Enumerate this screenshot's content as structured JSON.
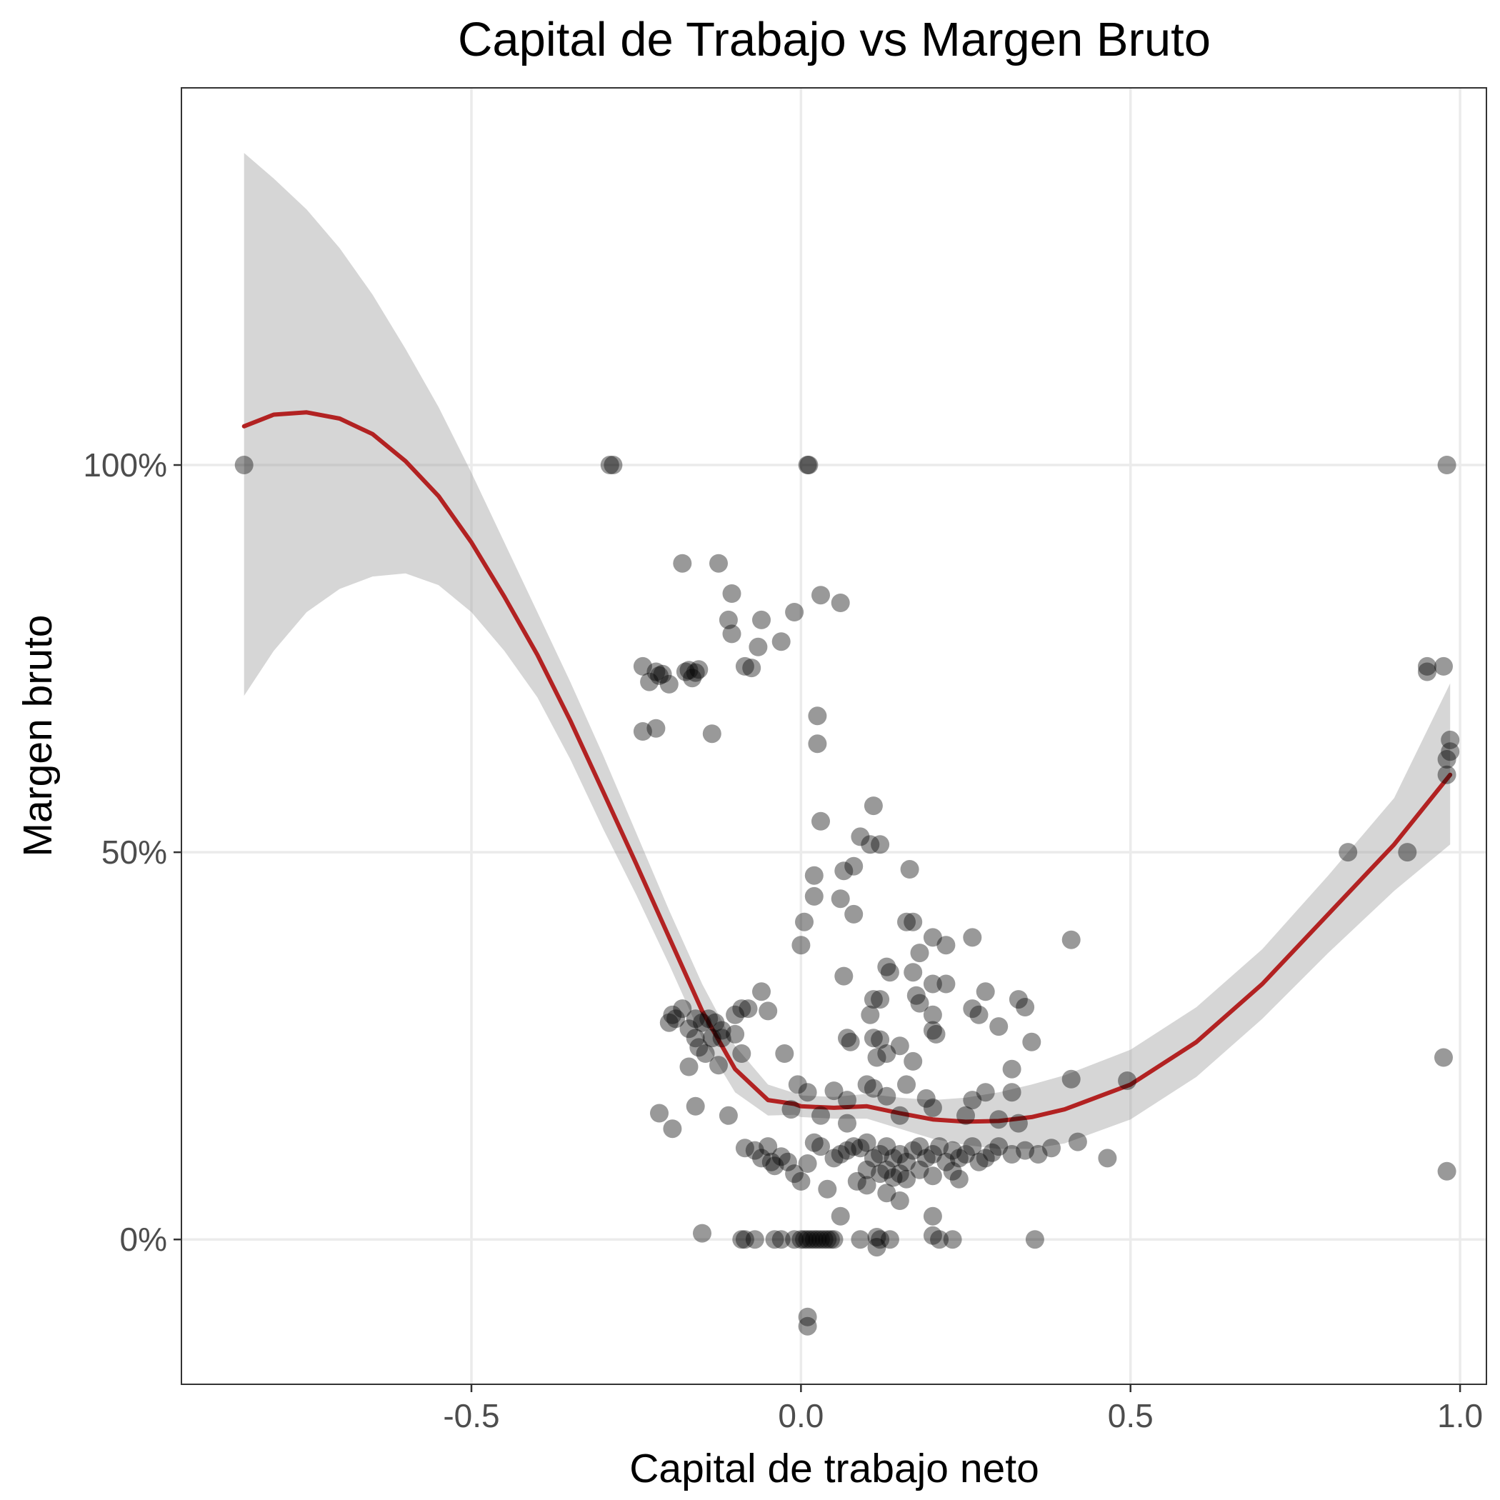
{
  "chart_data": {
    "type": "scatter",
    "title": "Capital de Trabajo vs Margen Bruto",
    "xlabel": "Capital de trabajo neto",
    "ylabel": "Margen bruto",
    "xlim": [
      -0.94,
      1.04
    ],
    "ylim": [
      -0.187,
      1.487
    ],
    "x_ticks": [
      -0.5,
      0.0,
      0.5,
      1.0
    ],
    "x_tick_labels": [
      "-0.5",
      "0.0",
      "0.5",
      "1.0"
    ],
    "y_ticks": [
      0,
      0.5,
      1.0
    ],
    "y_tick_labels": [
      "0%",
      "50%",
      "100%"
    ],
    "grid": true,
    "legend": "none",
    "colors": {
      "points": "#000000",
      "smooth_line": "#b22222",
      "ci_band": "#999999"
    },
    "series": [
      {
        "kind": "points",
        "points": [
          [
            -0.845,
            1.0
          ],
          [
            -0.29,
            1.0
          ],
          [
            -0.285,
            1.0
          ],
          [
            0.01,
            1.0
          ],
          [
            0.012,
            1.0
          ],
          [
            0.98,
            1.0
          ],
          [
            -0.18,
            0.873
          ],
          [
            -0.125,
            0.873
          ],
          [
            -0.105,
            0.834
          ],
          [
            -0.11,
            0.8
          ],
          [
            -0.105,
            0.782
          ],
          [
            -0.06,
            0.8
          ],
          [
            -0.065,
            0.765
          ],
          [
            -0.03,
            0.772
          ],
          [
            -0.01,
            0.81
          ],
          [
            0.03,
            0.832
          ],
          [
            0.06,
            0.822
          ],
          [
            -0.24,
            0.74
          ],
          [
            -0.22,
            0.733
          ],
          [
            -0.215,
            0.728
          ],
          [
            -0.21,
            0.73
          ],
          [
            -0.2,
            0.717
          ],
          [
            -0.23,
            0.72
          ],
          [
            -0.175,
            0.733
          ],
          [
            -0.17,
            0.735
          ],
          [
            -0.16,
            0.732
          ],
          [
            -0.165,
            0.725
          ],
          [
            -0.155,
            0.736
          ],
          [
            -0.085,
            0.74
          ],
          [
            -0.075,
            0.738
          ],
          [
            -0.24,
            0.656
          ],
          [
            -0.22,
            0.66
          ],
          [
            -0.135,
            0.653
          ],
          [
            0.025,
            0.676
          ],
          [
            0.025,
            0.64
          ],
          [
            0.11,
            0.56
          ],
          [
            0.03,
            0.54
          ],
          [
            0.09,
            0.52
          ],
          [
            0.105,
            0.51
          ],
          [
            0.12,
            0.51
          ],
          [
            0.165,
            0.478
          ],
          [
            0.08,
            0.482
          ],
          [
            0.065,
            0.476
          ],
          [
            0.02,
            0.47
          ],
          [
            0.02,
            0.443
          ],
          [
            0.06,
            0.44
          ],
          [
            0.08,
            0.42
          ],
          [
            0.005,
            0.41
          ],
          [
            0.0,
            0.38
          ],
          [
            0.16,
            0.41
          ],
          [
            0.17,
            0.41
          ],
          [
            0.2,
            0.39
          ],
          [
            0.22,
            0.38
          ],
          [
            0.26,
            0.39
          ],
          [
            0.41,
            0.387
          ],
          [
            0.18,
            0.37
          ],
          [
            0.13,
            0.352
          ],
          [
            0.135,
            0.345
          ],
          [
            0.17,
            0.345
          ],
          [
            0.065,
            0.34
          ],
          [
            0.2,
            0.33
          ],
          [
            0.22,
            0.33
          ],
          [
            0.28,
            0.32
          ],
          [
            0.33,
            0.31
          ],
          [
            0.11,
            0.31
          ],
          [
            0.12,
            0.31
          ],
          [
            0.18,
            0.305
          ],
          [
            0.175,
            0.315
          ],
          [
            0.105,
            0.29
          ],
          [
            0.2,
            0.29
          ],
          [
            0.26,
            0.298
          ],
          [
            0.27,
            0.29
          ],
          [
            0.34,
            0.3
          ],
          [
            0.3,
            0.275
          ],
          [
            0.2,
            0.27
          ],
          [
            0.205,
            0.265
          ],
          [
            0.35,
            0.255
          ],
          [
            0.11,
            0.26
          ],
          [
            0.12,
            0.258
          ],
          [
            0.075,
            0.255
          ],
          [
            0.07,
            0.26
          ],
          [
            0.15,
            0.25
          ],
          [
            0.13,
            0.24
          ],
          [
            0.115,
            0.235
          ],
          [
            0.17,
            0.23
          ],
          [
            0.32,
            0.22
          ],
          [
            0.41,
            0.207
          ],
          [
            0.495,
            0.205
          ],
          [
            -0.06,
            0.32
          ],
          [
            -0.08,
            0.298
          ],
          [
            -0.09,
            0.298
          ],
          [
            -0.05,
            0.295
          ],
          [
            -0.19,
            0.285
          ],
          [
            -0.195,
            0.29
          ],
          [
            -0.18,
            0.298
          ],
          [
            -0.2,
            0.28
          ],
          [
            -0.17,
            0.272
          ],
          [
            -0.16,
            0.285
          ],
          [
            -0.15,
            0.28
          ],
          [
            -0.14,
            0.285
          ],
          [
            -0.13,
            0.28
          ],
          [
            -0.12,
            0.27
          ],
          [
            -0.135,
            0.26
          ],
          [
            -0.12,
            0.26
          ],
          [
            -0.1,
            0.29
          ],
          [
            -0.1,
            0.265
          ],
          [
            -0.16,
            0.26
          ],
          [
            -0.155,
            0.248
          ],
          [
            -0.145,
            0.24
          ],
          [
            -0.09,
            0.24
          ],
          [
            -0.025,
            0.24
          ],
          [
            -0.17,
            0.223
          ],
          [
            -0.125,
            0.225
          ],
          [
            -0.005,
            0.2
          ],
          [
            0.01,
            0.19
          ],
          [
            0.05,
            0.192
          ],
          [
            0.1,
            0.2
          ],
          [
            0.11,
            0.195
          ],
          [
            0.13,
            0.185
          ],
          [
            0.16,
            0.2
          ],
          [
            0.07,
            0.18
          ],
          [
            0.19,
            0.182
          ],
          [
            0.2,
            0.17
          ],
          [
            0.26,
            0.18
          ],
          [
            0.28,
            0.19
          ],
          [
            0.32,
            0.19
          ],
          [
            -0.015,
            0.168
          ],
          [
            0.03,
            0.16
          ],
          [
            0.07,
            0.15
          ],
          [
            -0.16,
            0.172
          ],
          [
            -0.215,
            0.163
          ],
          [
            -0.195,
            0.143
          ],
          [
            -0.11,
            0.16
          ],
          [
            0.15,
            0.16
          ],
          [
            0.25,
            0.16
          ],
          [
            0.3,
            0.155
          ],
          [
            0.33,
            0.15
          ],
          [
            -0.085,
            0.118
          ],
          [
            -0.07,
            0.115
          ],
          [
            -0.06,
            0.105
          ],
          [
            -0.05,
            0.12
          ],
          [
            -0.045,
            0.1
          ],
          [
            -0.04,
            0.095
          ],
          [
            -0.03,
            0.107
          ],
          [
            -0.02,
            0.1
          ],
          [
            -0.01,
            0.085
          ],
          [
            0.0,
            0.075
          ],
          [
            0.01,
            0.098
          ],
          [
            0.02,
            0.125
          ],
          [
            0.03,
            0.12
          ],
          [
            0.05,
            0.105
          ],
          [
            0.06,
            0.11
          ],
          [
            0.07,
            0.115
          ],
          [
            0.08,
            0.12
          ],
          [
            0.09,
            0.118
          ],
          [
            0.1,
            0.125
          ],
          [
            0.11,
            0.105
          ],
          [
            0.12,
            0.11
          ],
          [
            0.13,
            0.12
          ],
          [
            0.14,
            0.105
          ],
          [
            0.15,
            0.11
          ],
          [
            0.16,
            0.1
          ],
          [
            0.17,
            0.115
          ],
          [
            0.18,
            0.12
          ],
          [
            0.19,
            0.105
          ],
          [
            0.2,
            0.11
          ],
          [
            0.21,
            0.12
          ],
          [
            0.22,
            0.1
          ],
          [
            0.23,
            0.115
          ],
          [
            0.24,
            0.105
          ],
          [
            0.25,
            0.11
          ],
          [
            0.26,
            0.12
          ],
          [
            0.27,
            0.1
          ],
          [
            0.28,
            0.105
          ],
          [
            0.29,
            0.112
          ],
          [
            0.3,
            0.12
          ],
          [
            0.32,
            0.11
          ],
          [
            0.34,
            0.115
          ],
          [
            0.36,
            0.11
          ],
          [
            0.38,
            0.118
          ],
          [
            0.42,
            0.126
          ],
          [
            0.465,
            0.105
          ],
          [
            0.1,
            0.09
          ],
          [
            0.12,
            0.085
          ],
          [
            0.13,
            0.09
          ],
          [
            0.14,
            0.08
          ],
          [
            0.15,
            0.085
          ],
          [
            0.16,
            0.078
          ],
          [
            0.18,
            0.09
          ],
          [
            0.2,
            0.082
          ],
          [
            0.23,
            0.088
          ],
          [
            0.1,
            0.07
          ],
          [
            0.13,
            0.06
          ],
          [
            0.15,
            0.05
          ],
          [
            0.085,
            0.075
          ],
          [
            0.04,
            0.065
          ],
          [
            0.06,
            0.03
          ],
          [
            0.2,
            0.03
          ],
          [
            0.24,
            0.078
          ],
          [
            -0.09,
            0.0
          ],
          [
            -0.085,
            0.0
          ],
          [
            -0.07,
            0.0
          ],
          [
            -0.04,
            0.0
          ],
          [
            -0.03,
            0.0
          ],
          [
            -0.01,
            0.0
          ],
          [
            0.0,
            0.0
          ],
          [
            0.005,
            0.0
          ],
          [
            0.01,
            0.0
          ],
          [
            0.015,
            0.0
          ],
          [
            0.02,
            0.0
          ],
          [
            0.025,
            0.0
          ],
          [
            0.03,
            0.0
          ],
          [
            0.035,
            0.0
          ],
          [
            0.04,
            0.0
          ],
          [
            0.045,
            0.0
          ],
          [
            0.05,
            0.0
          ],
          [
            0.09,
            0.0
          ],
          [
            0.12,
            0.0
          ],
          [
            0.135,
            0.0
          ],
          [
            0.21,
            0.0
          ],
          [
            0.23,
            0.0
          ],
          [
            0.355,
            0.0
          ],
          [
            -0.15,
            0.008
          ],
          [
            0.115,
            -0.01
          ],
          [
            0.115,
            0.003
          ],
          [
            0.2,
            0.005
          ],
          [
            0.01,
            -0.1
          ],
          [
            0.01,
            -0.112
          ],
          [
            0.95,
            0.74
          ],
          [
            0.95,
            0.733
          ],
          [
            0.975,
            0.74
          ],
          [
            0.985,
            0.645
          ],
          [
            0.985,
            0.63
          ],
          [
            0.98,
            0.62
          ],
          [
            0.98,
            0.6
          ],
          [
            0.83,
            0.5
          ],
          [
            0.92,
            0.5
          ],
          [
            0.975,
            0.235
          ],
          [
            0.98,
            0.088
          ]
        ]
      },
      {
        "kind": "smooth",
        "color": "#b22222",
        "x": [
          -0.845,
          -0.8,
          -0.75,
          -0.7,
          -0.65,
          -0.6,
          -0.55,
          -0.5,
          -0.45,
          -0.4,
          -0.35,
          -0.3,
          -0.25,
          -0.2,
          -0.15,
          -0.1,
          -0.05,
          -0.01,
          0.0,
          0.05,
          0.1,
          0.15,
          0.2,
          0.25,
          0.3,
          0.35,
          0.4,
          0.5,
          0.6,
          0.7,
          0.8,
          0.9,
          0.985
        ],
        "y": [
          1.05,
          1.065,
          1.068,
          1.06,
          1.04,
          1.005,
          0.96,
          0.9,
          0.83,
          0.755,
          0.67,
          0.578,
          0.485,
          0.39,
          0.295,
          0.22,
          0.18,
          0.175,
          0.172,
          0.17,
          0.172,
          0.163,
          0.155,
          0.152,
          0.153,
          0.158,
          0.168,
          0.2,
          0.255,
          0.33,
          0.42,
          0.51,
          0.6
        ],
        "ci_upper": [
          1.403,
          1.37,
          1.33,
          1.28,
          1.22,
          1.15,
          1.075,
          0.99,
          0.9,
          0.81,
          0.72,
          0.625,
          0.525,
          0.425,
          0.33,
          0.25,
          0.2,
          0.189,
          0.186,
          0.184,
          0.188,
          0.183,
          0.18,
          0.183,
          0.19,
          0.2,
          0.212,
          0.245,
          0.3,
          0.375,
          0.47,
          0.57,
          0.718
        ],
        "ci_lower": [
          0.702,
          0.76,
          0.81,
          0.84,
          0.856,
          0.86,
          0.845,
          0.81,
          0.76,
          0.7,
          0.62,
          0.53,
          0.445,
          0.355,
          0.26,
          0.19,
          0.16,
          0.161,
          0.158,
          0.156,
          0.156,
          0.143,
          0.13,
          0.122,
          0.117,
          0.117,
          0.124,
          0.155,
          0.21,
          0.285,
          0.37,
          0.45,
          0.51
        ]
      }
    ]
  }
}
